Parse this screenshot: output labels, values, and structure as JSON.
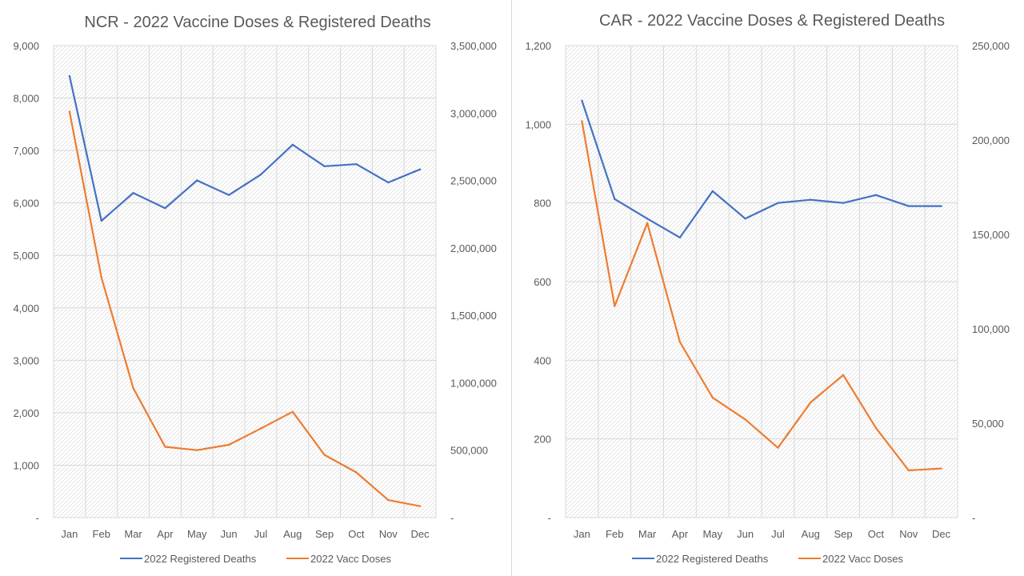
{
  "colors": {
    "deaths": "#4472c4",
    "vacc": "#ed7d31",
    "grid": "#d9d9d9",
    "text": "#595959"
  },
  "chart_data": [
    {
      "type": "line",
      "title": "NCR - 2022 Vaccine Doses & Registered Deaths",
      "categories": [
        "Jan",
        "Feb",
        "Mar",
        "Apr",
        "May",
        "Jun",
        "Jul",
        "Aug",
        "Sep",
        "Oct",
        "Nov",
        "Dec"
      ],
      "series": [
        {
          "name": "2022 Registered Deaths",
          "axis": "left",
          "color": "#4472c4",
          "values": [
            8420,
            5660,
            6190,
            5900,
            6430,
            6150,
            6540,
            7110,
            6700,
            6740,
            6390,
            6640
          ]
        },
        {
          "name": "2022 Vacc Doses",
          "axis": "right",
          "color": "#ed7d31",
          "values": [
            3010000,
            1780000,
            960000,
            525000,
            500000,
            540000,
            660000,
            785000,
            465000,
            335000,
            130000,
            85000
          ]
        }
      ],
      "y_left": {
        "min": 0,
        "max": 9000,
        "ticks": [
          "-",
          "1,000",
          "2,000",
          "3,000",
          "4,000",
          "5,000",
          "6,000",
          "7,000",
          "8,000",
          "9,000"
        ]
      },
      "y_right": {
        "min": 0,
        "max": 3500000,
        "ticks": [
          "-",
          "500,000",
          "1,000,000",
          "1,500,000",
          "2,000,000",
          "2,500,000",
          "3,000,000",
          "3,500,000"
        ]
      },
      "grid": true,
      "legend": "bottom"
    },
    {
      "type": "line",
      "title": "CAR - 2022 Vaccine Doses & Registered Deaths",
      "categories": [
        "Jan",
        "Feb",
        "Mar",
        "Apr",
        "May",
        "Jun",
        "Jul",
        "Aug",
        "Sep",
        "Oct",
        "Nov",
        "Dec"
      ],
      "series": [
        {
          "name": "2022 Registered Deaths",
          "axis": "left",
          "color": "#4472c4",
          "values": [
            1060,
            810,
            760,
            712,
            830,
            760,
            800,
            808,
            800,
            820,
            792,
            792
          ]
        },
        {
          "name": "2022 Vacc Doses",
          "axis": "right",
          "color": "#ed7d31",
          "values": [
            210000,
            112000,
            156000,
            93000,
            63500,
            52000,
            37000,
            61000,
            75500,
            47500,
            25000,
            26000
          ]
        }
      ],
      "y_left": {
        "min": 0,
        "max": 1200,
        "ticks": [
          "-",
          "200",
          "400",
          "600",
          "800",
          "1,000",
          "1,200"
        ]
      },
      "y_right": {
        "min": 0,
        "max": 250000,
        "ticks": [
          "-",
          "50,000",
          "100,000",
          "150,000",
          "200,000",
          "250,000"
        ]
      },
      "grid": true,
      "legend": "bottom"
    }
  ]
}
